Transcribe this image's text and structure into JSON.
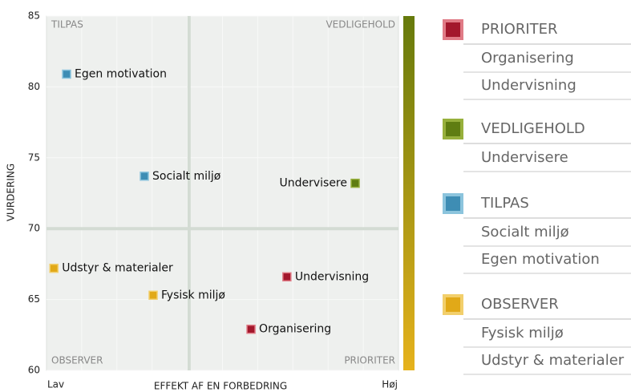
{
  "chart_data": {
    "type": "scatter",
    "ylabel": "VURDERING",
    "xlabel": "EFFEKT AF EN FORBEDRING",
    "x_low_label": "Lav",
    "x_high_label": "Høj",
    "xlim": [
      0,
      100
    ],
    "ylim": [
      60,
      85
    ],
    "yticks": [
      60,
      65,
      70,
      75,
      80,
      85
    ],
    "quadrant_lines": {
      "x": 40.5,
      "y": 70
    },
    "gradient": [
      "#667a0c",
      "#e6b21c"
    ],
    "series": [
      {
        "name": "PRIORITER",
        "color": "#a3182c",
        "light": "#e07b86",
        "quadrant": "bottom-right",
        "points": [
          {
            "label": "Organisering",
            "x": 58.1,
            "y": 62.9
          },
          {
            "label": "Undervisning",
            "x": 68.3,
            "y": 66.6
          }
        ]
      },
      {
        "name": "VEDLIGEHOLD",
        "color": "#5f7d12",
        "light": "#97b03c",
        "quadrant": "top-right",
        "points": [
          {
            "label": "Undervisere",
            "x": 87.7,
            "y": 73.2
          }
        ]
      },
      {
        "name": "TILPAS",
        "color": "#3e8db4",
        "light": "#8cc4dd",
        "quadrant": "top-left",
        "points": [
          {
            "label": "Socialt miljø",
            "x": 27.8,
            "y": 73.7
          },
          {
            "label": "Egen motivation",
            "x": 5.7,
            "y": 80.9
          }
        ]
      },
      {
        "name": "OBSERVER",
        "color": "#e1a918",
        "light": "#f2cf6c",
        "quadrant": "bottom-left",
        "points": [
          {
            "label": "Fysisk miljø",
            "x": 30.3,
            "y": 65.3
          },
          {
            "label": "Udstyr & materialer",
            "x": 2.1,
            "y": 67.2
          }
        ]
      }
    ]
  }
}
